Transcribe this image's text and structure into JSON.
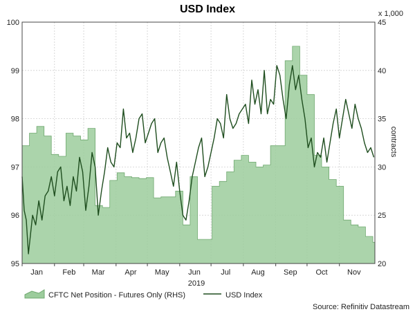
{
  "chart_data": {
    "type": "line",
    "title": "USD Index",
    "xlabel": "2019",
    "x_ticks": [
      "Jan",
      "Feb",
      "Mar",
      "Apr",
      "May",
      "Jun",
      "Jul",
      "Aug",
      "Sep",
      "Oct",
      "Nov"
    ],
    "y_left": {
      "ticks": [
        "95",
        "96",
        "97",
        "98",
        "99",
        "100"
      ],
      "ylim": [
        95,
        100
      ]
    },
    "y_right": {
      "ticks": [
        "20",
        "25",
        "30",
        "35",
        "40",
        "45"
      ],
      "ylim": [
        20,
        45
      ],
      "label": "contracts",
      "unit_label": "x 1,000"
    },
    "grid": true,
    "legend": {
      "placement": "bottom"
    },
    "source": "Source: Refinitiv Datastream",
    "series": [
      {
        "name": "CFTC Net Position - Futures Only (RHS)",
        "kind": "area",
        "axis": "right",
        "color": "#9ccc9c",
        "line_color": "#6fa86f",
        "x": [
          "2019-01-01",
          "2019-01-08",
          "2019-01-15",
          "2019-01-22",
          "2019-01-29",
          "2019-02-05",
          "2019-02-12",
          "2019-02-19",
          "2019-02-26",
          "2019-03-05",
          "2019-03-12",
          "2019-03-19",
          "2019-03-26",
          "2019-04-02",
          "2019-04-09",
          "2019-04-16",
          "2019-04-23",
          "2019-04-30",
          "2019-05-07",
          "2019-05-14",
          "2019-05-21",
          "2019-05-28",
          "2019-06-04",
          "2019-06-11",
          "2019-06-18",
          "2019-06-25",
          "2019-07-02",
          "2019-07-09",
          "2019-07-16",
          "2019-07-23",
          "2019-07-30",
          "2019-08-06",
          "2019-08-13",
          "2019-08-20",
          "2019-08-27",
          "2019-09-03",
          "2019-09-10",
          "2019-09-17",
          "2019-09-24",
          "2019-10-01",
          "2019-10-08",
          "2019-10-15",
          "2019-10-22",
          "2019-10-29",
          "2019-11-05",
          "2019-11-12",
          "2019-11-19",
          "2019-11-26",
          "2019-12-03"
        ],
        "y": [
          32.2,
          33.5,
          34.2,
          33.2,
          31.3,
          31.1,
          33.5,
          33.2,
          32.8,
          34.0,
          26.0,
          25.8,
          28.6,
          29.4,
          29.0,
          28.9,
          28.8,
          28.9,
          26.8,
          26.9,
          26.9,
          27.5,
          24.0,
          29.0,
          22.5,
          22.5,
          28.0,
          28.5,
          29.5,
          30.7,
          31.2,
          30.5,
          30.0,
          30.2,
          32.2,
          32.2,
          41.0,
          42.5,
          39.5,
          37.5,
          31.2,
          30.0,
          28.7,
          28.0,
          24.5,
          24.0,
          23.8,
          22.8,
          22.2
        ]
      },
      {
        "name": "USD Index",
        "kind": "line",
        "axis": "left",
        "color": "#1e4d1e",
        "x": [
          "2019-01-01",
          "2019-01-03",
          "2019-01-05",
          "2019-01-07",
          "2019-01-09",
          "2019-01-11",
          "2019-01-14",
          "2019-01-17",
          "2019-01-20",
          "2019-01-23",
          "2019-01-26",
          "2019-01-29",
          "2019-02-01",
          "2019-02-04",
          "2019-02-07",
          "2019-02-10",
          "2019-02-13",
          "2019-02-16",
          "2019-02-19",
          "2019-02-22",
          "2019-02-25",
          "2019-02-28",
          "2019-03-03",
          "2019-03-06",
          "2019-03-09",
          "2019-03-12",
          "2019-03-15",
          "2019-03-18",
          "2019-03-21",
          "2019-03-24",
          "2019-03-27",
          "2019-03-30",
          "2019-04-02",
          "2019-04-05",
          "2019-04-08",
          "2019-04-11",
          "2019-04-14",
          "2019-04-17",
          "2019-04-20",
          "2019-04-23",
          "2019-04-26",
          "2019-04-29",
          "2019-05-02",
          "2019-05-05",
          "2019-05-08",
          "2019-05-11",
          "2019-05-14",
          "2019-05-17",
          "2019-05-20",
          "2019-05-23",
          "2019-05-26",
          "2019-05-29",
          "2019-06-01",
          "2019-06-04",
          "2019-06-07",
          "2019-06-10",
          "2019-06-13",
          "2019-06-16",
          "2019-06-19",
          "2019-06-22",
          "2019-06-25",
          "2019-06-28",
          "2019-07-01",
          "2019-07-04",
          "2019-07-07",
          "2019-07-10",
          "2019-07-13",
          "2019-07-16",
          "2019-07-19",
          "2019-07-22",
          "2019-07-25",
          "2019-07-28",
          "2019-07-31",
          "2019-08-03",
          "2019-08-06",
          "2019-08-09",
          "2019-08-12",
          "2019-08-15",
          "2019-08-18",
          "2019-08-21",
          "2019-08-24",
          "2019-08-27",
          "2019-08-30",
          "2019-09-02",
          "2019-09-05",
          "2019-09-08",
          "2019-09-11",
          "2019-09-14",
          "2019-09-17",
          "2019-09-20",
          "2019-09-23",
          "2019-09-26",
          "2019-09-29",
          "2019-10-02",
          "2019-10-05",
          "2019-10-08",
          "2019-10-11",
          "2019-10-14",
          "2019-10-17",
          "2019-10-20",
          "2019-10-23",
          "2019-10-26",
          "2019-10-29",
          "2019-11-01",
          "2019-11-04",
          "2019-11-07",
          "2019-11-10",
          "2019-11-13",
          "2019-11-16",
          "2019-11-19",
          "2019-11-22",
          "2019-11-25",
          "2019-11-28",
          "2019-12-01",
          "2019-12-04"
        ],
        "y": [
          96.8,
          96.1,
          95.9,
          95.2,
          95.6,
          96.0,
          95.8,
          96.3,
          95.9,
          96.4,
          96.5,
          96.8,
          96.4,
          96.9,
          97.0,
          96.3,
          96.6,
          96.2,
          96.8,
          96.5,
          97.2,
          96.9,
          96.1,
          96.6,
          97.3,
          97.0,
          96.0,
          96.5,
          96.9,
          97.4,
          97.1,
          97.0,
          97.5,
          97.4,
          98.2,
          97.6,
          97.7,
          97.3,
          97.6,
          98.0,
          98.1,
          97.5,
          97.7,
          97.9,
          98.0,
          97.3,
          97.5,
          97.6,
          97.2,
          96.9,
          96.6,
          97.1,
          96.5,
          96.0,
          95.9,
          96.3,
          96.8,
          97.1,
          97.4,
          97.6,
          96.8,
          97.0,
          97.3,
          97.6,
          98.0,
          97.9,
          97.6,
          98.5,
          98.0,
          97.8,
          97.9,
          98.1,
          98.2,
          98.3,
          97.9,
          98.8,
          98.3,
          98.6,
          98.1,
          99.0,
          98.1,
          98.4,
          98.3,
          99.1,
          98.9,
          98.4,
          98.0,
          98.7,
          99.1,
          98.6,
          98.9,
          98.4,
          98.0,
          97.4,
          97.6,
          97.0,
          97.3,
          97.2,
          97.6,
          97.1,
          97.5,
          97.9,
          98.2,
          97.6,
          98.0,
          98.4,
          98.1,
          97.8,
          98.3,
          98.0,
          97.8,
          97.5,
          97.3,
          97.4,
          97.2
        ]
      }
    ]
  }
}
